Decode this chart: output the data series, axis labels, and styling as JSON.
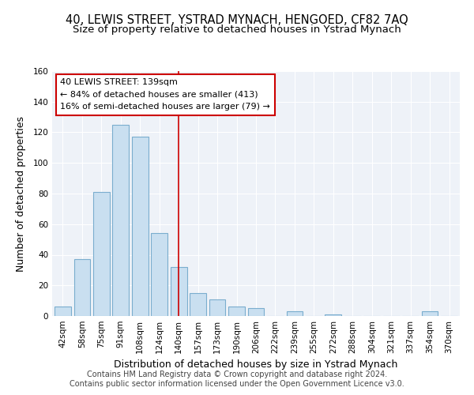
{
  "title": "40, LEWIS STREET, YSTRAD MYNACH, HENGOED, CF82 7AQ",
  "subtitle": "Size of property relative to detached houses in Ystrad Mynach",
  "xlabel": "Distribution of detached houses by size in Ystrad Mynach",
  "ylabel": "Number of detached properties",
  "footer_line1": "Contains HM Land Registry data © Crown copyright and database right 2024.",
  "footer_line2": "Contains public sector information licensed under the Open Government Licence v3.0.",
  "bar_labels": [
    "42sqm",
    "58sqm",
    "75sqm",
    "91sqm",
    "108sqm",
    "124sqm",
    "140sqm",
    "157sqm",
    "173sqm",
    "190sqm",
    "206sqm",
    "222sqm",
    "239sqm",
    "255sqm",
    "272sqm",
    "288sqm",
    "304sqm",
    "321sqm",
    "337sqm",
    "354sqm",
    "370sqm"
  ],
  "bar_values": [
    6,
    37,
    81,
    125,
    117,
    54,
    32,
    15,
    11,
    6,
    5,
    0,
    3,
    0,
    1,
    0,
    0,
    0,
    0,
    3,
    0
  ],
  "bar_color": "#c9dff0",
  "bar_edge_color": "#7aadce",
  "vline_x_index": 6,
  "vline_color": "#cc0000",
  "annotation_title": "40 LEWIS STREET: 139sqm",
  "annotation_line1": "← 84% of detached houses are smaller (413)",
  "annotation_line2": "16% of semi-detached houses are larger (79) →",
  "annotation_box_color": "#ffffff",
  "annotation_box_edge": "#cc0000",
  "ylim": [
    0,
    160
  ],
  "yticks": [
    0,
    20,
    40,
    60,
    80,
    100,
    120,
    140,
    160
  ],
  "background_color": "#ffffff",
  "plot_background": "#eef2f8",
  "title_fontsize": 10.5,
  "subtitle_fontsize": 9.5,
  "axis_label_fontsize": 9,
  "tick_fontsize": 7.5,
  "footer_fontsize": 7
}
